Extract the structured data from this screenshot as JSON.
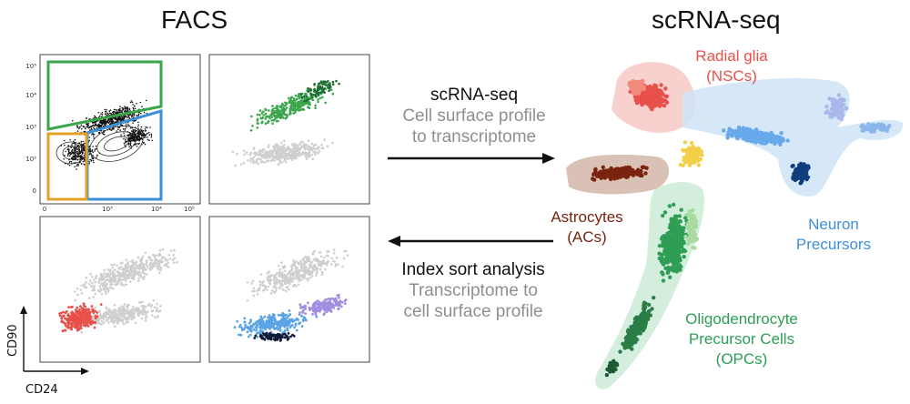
{
  "headings": {
    "facs": "FACS",
    "scrna": "scRNA-seq"
  },
  "facs_axes": {
    "x_ticks": [
      "0",
      "10³",
      "10⁴",
      "10⁵"
    ],
    "y_ticks": [
      "10⁵",
      "10⁴",
      "10³",
      "10²",
      "0"
    ],
    "y_label": "CD90",
    "x_label": "CD24"
  },
  "forward": {
    "line1": "scRNA-seq",
    "line2": "Cell surface profile",
    "line3": "to transcriptome"
  },
  "reverse": {
    "line1": "Index sort analysis",
    "line2": "Transcriptome to",
    "line3": "cell surface profile"
  },
  "clusters": {
    "radial_glia": {
      "line1": "Radial glia",
      "line2": "(NSCs)"
    },
    "astrocytes": {
      "line1": "Astrocytes",
      "line2": "(ACs)"
    },
    "neuron_precursors": {
      "line1": "Neuron",
      "line2": "Precursors"
    },
    "opcs": {
      "line1": "Oligodendrocyte",
      "line2": "Precursor Cells",
      "line3": "(OPCs)"
    }
  },
  "colors": {
    "gate_green": "#3aa64b",
    "gate_blue": "#3b8fd6",
    "gate_orange": "#e3a02a",
    "radial_glia": "#e8504a",
    "astrocytes": "#7a2410",
    "neurons": "#3f8fd8",
    "opcs": "#2e9e55",
    "hub_yellow": "#f3cf4a",
    "grey_cells": "#cfcfcf"
  }
}
